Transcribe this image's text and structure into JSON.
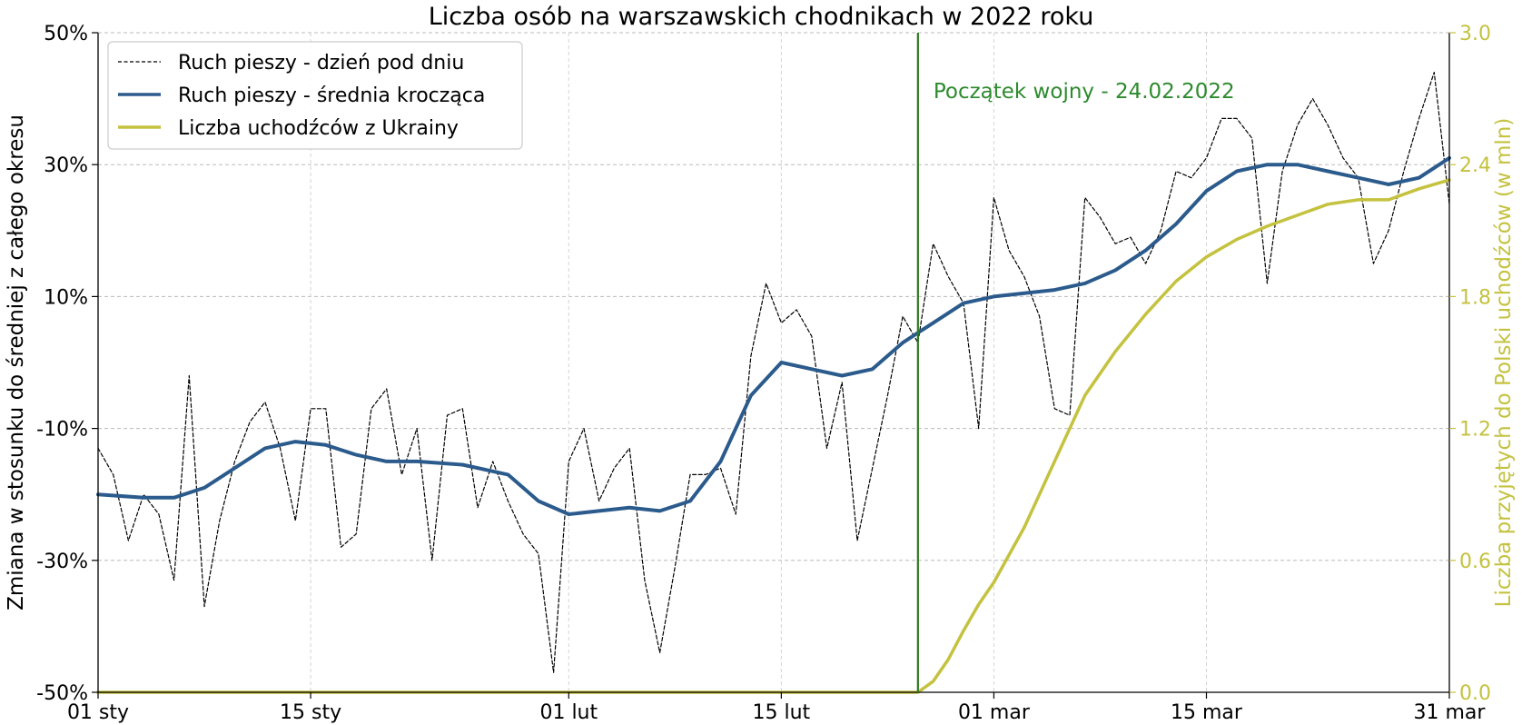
{
  "chart_data": {
    "type": "line",
    "title": "Liczba osób na warszawskich chodnikach w 2022 roku",
    "ylabel": "Zmiana w stosunku do średniej z całego okresu",
    "y2label": "Liczba przyjętych do Polski uchodźców (w mln)",
    "ylim": [
      -50,
      50
    ],
    "y2lim": [
      0,
      3
    ],
    "xlim": [
      "2022-01-01",
      "2022-03-31"
    ],
    "x_ticks": [
      {
        "date": "2022-01-01",
        "label": "01 sty"
      },
      {
        "date": "2022-01-15",
        "label": "15 sty"
      },
      {
        "date": "2022-02-01",
        "label": "01 lut"
      },
      {
        "date": "2022-02-15",
        "label": "15 lut"
      },
      {
        "date": "2022-03-01",
        "label": "01 mar"
      },
      {
        "date": "2022-03-15",
        "label": "15 mar"
      },
      {
        "date": "2022-03-31",
        "label": "31 mar"
      }
    ],
    "y_ticks": [
      {
        "value": 50,
        "label": "50%"
      },
      {
        "value": 30,
        "label": "30%"
      },
      {
        "value": 10,
        "label": "10%"
      },
      {
        "value": -10,
        "label": "-10%"
      },
      {
        "value": -30,
        "label": "-30%"
      },
      {
        "value": -50,
        "label": "-50%"
      }
    ],
    "y2_ticks": [
      {
        "value": 3.0,
        "label": "3.0"
      },
      {
        "value": 2.4,
        "label": "2.4"
      },
      {
        "value": 1.8,
        "label": "1.8"
      },
      {
        "value": 1.2,
        "label": "1.2"
      },
      {
        "value": 0.6,
        "label": "0.6"
      },
      {
        "value": 0.0,
        "label": "0.0"
      }
    ],
    "grid": true,
    "legend_position": "top-left",
    "annotation": {
      "date": "2022-02-24",
      "text": "Początek wojny - 24.02.2022",
      "color": "#2d7a1f"
    },
    "series": [
      {
        "name": "Ruch pieszy - dzień pod dniu",
        "style": "dashed",
        "color": "#000000",
        "axis": "left",
        "x": [
          "2022-01-01",
          "2022-01-02",
          "2022-01-03",
          "2022-01-04",
          "2022-01-05",
          "2022-01-06",
          "2022-01-07",
          "2022-01-08",
          "2022-01-09",
          "2022-01-10",
          "2022-01-11",
          "2022-01-12",
          "2022-01-13",
          "2022-01-14",
          "2022-01-15",
          "2022-01-16",
          "2022-01-17",
          "2022-01-18",
          "2022-01-19",
          "2022-01-20",
          "2022-01-21",
          "2022-01-22",
          "2022-01-23",
          "2022-01-24",
          "2022-01-25",
          "2022-01-26",
          "2022-01-27",
          "2022-01-28",
          "2022-01-29",
          "2022-01-30",
          "2022-01-31",
          "2022-02-01",
          "2022-02-02",
          "2022-02-03",
          "2022-02-04",
          "2022-02-05",
          "2022-02-06",
          "2022-02-07",
          "2022-02-08",
          "2022-02-09",
          "2022-02-10",
          "2022-02-11",
          "2022-02-12",
          "2022-02-13",
          "2022-02-14",
          "2022-02-15",
          "2022-02-16",
          "2022-02-17",
          "2022-02-18",
          "2022-02-19",
          "2022-02-20",
          "2022-02-21",
          "2022-02-22",
          "2022-02-23",
          "2022-02-24",
          "2022-02-25",
          "2022-02-26",
          "2022-02-27",
          "2022-02-28",
          "2022-03-01",
          "2022-03-02",
          "2022-03-03",
          "2022-03-04",
          "2022-03-05",
          "2022-03-06",
          "2022-03-07",
          "2022-03-08",
          "2022-03-09",
          "2022-03-10",
          "2022-03-11",
          "2022-03-12",
          "2022-03-13",
          "2022-03-14",
          "2022-03-15",
          "2022-03-16",
          "2022-03-17",
          "2022-03-18",
          "2022-03-19",
          "2022-03-20",
          "2022-03-21",
          "2022-03-22",
          "2022-03-23",
          "2022-03-24",
          "2022-03-25",
          "2022-03-26",
          "2022-03-27",
          "2022-03-28",
          "2022-03-29",
          "2022-03-30",
          "2022-03-31"
        ],
        "values": [
          -13,
          -17,
          -27,
          -20,
          -23,
          -33,
          -2,
          -37,
          -24,
          -15,
          -9,
          -6,
          -13,
          -24,
          -7,
          -7,
          -28,
          -26,
          -7,
          -4,
          -17,
          -10,
          -30,
          -8,
          -7,
          -22,
          -15,
          -21,
          -26,
          -29,
          -47,
          -15,
          -10,
          -21,
          -16,
          -13,
          -33,
          -44,
          -31,
          -17,
          -17,
          -16,
          -23,
          1,
          12,
          6,
          8,
          4,
          -13,
          -3,
          -27,
          -16,
          -5,
          7,
          3,
          18,
          13,
          9,
          -10,
          25,
          17,
          13,
          7,
          -7,
          -8,
          25,
          22,
          18,
          19,
          15,
          20,
          29,
          28,
          31,
          37,
          37,
          34,
          12,
          29,
          36,
          40,
          36,
          31,
          28,
          15,
          20,
          29,
          37,
          44,
          24
        ]
      },
      {
        "name": "Ruch pieszy - średnia krocząca",
        "style": "solid",
        "color": "#2b5b8c",
        "axis": "left",
        "x": [
          "2022-01-01",
          "2022-01-04",
          "2022-01-06",
          "2022-01-08",
          "2022-01-10",
          "2022-01-12",
          "2022-01-14",
          "2022-01-16",
          "2022-01-18",
          "2022-01-20",
          "2022-01-22",
          "2022-01-25",
          "2022-01-28",
          "2022-01-30",
          "2022-02-01",
          "2022-02-03",
          "2022-02-05",
          "2022-02-07",
          "2022-02-09",
          "2022-02-11",
          "2022-02-13",
          "2022-02-15",
          "2022-02-17",
          "2022-02-19",
          "2022-02-21",
          "2022-02-23",
          "2022-02-25",
          "2022-02-27",
          "2022-03-01",
          "2022-03-03",
          "2022-03-05",
          "2022-03-07",
          "2022-03-09",
          "2022-03-11",
          "2022-03-13",
          "2022-03-15",
          "2022-03-17",
          "2022-03-19",
          "2022-03-21",
          "2022-03-23",
          "2022-03-25",
          "2022-03-27",
          "2022-03-29",
          "2022-03-31"
        ],
        "values": [
          -20,
          -20.5,
          -20.5,
          -19,
          -16,
          -13,
          -12,
          -12.5,
          -14,
          -15,
          -15,
          -15.5,
          -17,
          -21,
          -23,
          -22.5,
          -22,
          -22.5,
          -21,
          -15,
          -5,
          0,
          -1,
          -2,
          -1,
          3,
          6,
          9,
          10,
          10.5,
          11,
          12,
          14,
          17,
          21,
          26,
          29,
          30,
          30,
          29,
          28,
          27,
          28,
          31
        ]
      },
      {
        "name": "Liczba uchodźców z Ukrainy",
        "style": "solid",
        "color": "#c4c23f",
        "axis": "right",
        "x": [
          "2022-01-01",
          "2022-02-24",
          "2022-02-25",
          "2022-02-26",
          "2022-02-27",
          "2022-02-28",
          "2022-03-01",
          "2022-03-03",
          "2022-03-05",
          "2022-03-07",
          "2022-03-09",
          "2022-03-11",
          "2022-03-13",
          "2022-03-15",
          "2022-03-17",
          "2022-03-19",
          "2022-03-21",
          "2022-03-23",
          "2022-03-25",
          "2022-03-27",
          "2022-03-29",
          "2022-03-31"
        ],
        "values": [
          0.0,
          0.0,
          0.05,
          0.15,
          0.28,
          0.4,
          0.5,
          0.75,
          1.05,
          1.35,
          1.55,
          1.72,
          1.87,
          1.98,
          2.06,
          2.12,
          2.17,
          2.22,
          2.24,
          2.24,
          2.29,
          2.33
        ]
      }
    ]
  }
}
